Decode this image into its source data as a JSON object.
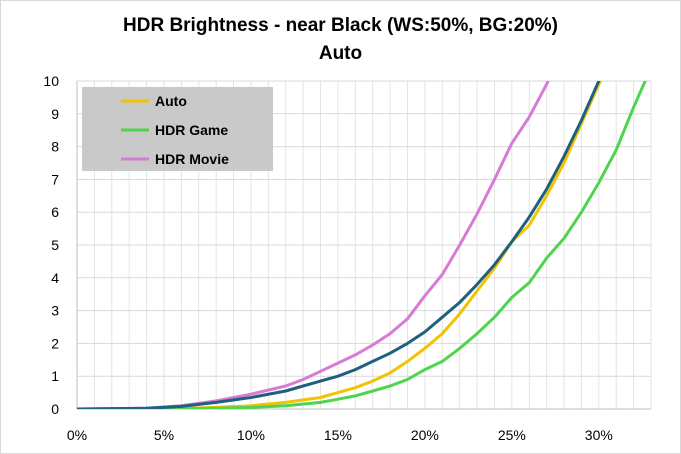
{
  "chart_data": {
    "type": "line",
    "title": "HDR Brightness - near Black (WS:50%, BG:20%)",
    "subtitle": "Auto",
    "xlabel": "",
    "ylabel": "",
    "xlim": [
      0,
      33
    ],
    "ylim": [
      0,
      10
    ],
    "x_ticks": [
      0,
      5,
      10,
      15,
      20,
      25,
      30
    ],
    "x_tick_labels": [
      "0%",
      "5%",
      "10%",
      "15%",
      "20%",
      "25%",
      "30%"
    ],
    "y_ticks": [
      0,
      1,
      2,
      3,
      4,
      5,
      6,
      7,
      8,
      9,
      10
    ],
    "y_tick_labels": [
      "0",
      "1",
      "2",
      "3",
      "4",
      "5",
      "6",
      "7",
      "8",
      "9",
      "10"
    ],
    "grid": true,
    "legend_position": "top-left",
    "series": [
      {
        "name": "Auto",
        "color": "#f2c300",
        "x": [
          0,
          5,
          8,
          10,
          12,
          14,
          15,
          16,
          17,
          18,
          19,
          20,
          21,
          22,
          23,
          24,
          25,
          26,
          27,
          28,
          29,
          30,
          30.5
        ],
        "y": [
          0,
          0,
          0.05,
          0.1,
          0.2,
          0.35,
          0.5,
          0.65,
          0.85,
          1.1,
          1.45,
          1.85,
          2.3,
          2.9,
          3.6,
          4.3,
          5.1,
          5.6,
          6.5,
          7.5,
          8.7,
          9.9,
          10.4
        ]
      },
      {
        "name": "HDR Game",
        "color": "#4fd44f",
        "x": [
          0,
          5,
          8,
          10,
          12,
          14,
          15,
          16,
          17,
          18,
          19,
          20,
          21,
          22,
          23,
          24,
          25,
          26,
          27,
          28,
          29,
          30,
          31,
          32,
          33
        ],
        "y": [
          0,
          0,
          0.02,
          0.05,
          0.1,
          0.2,
          0.3,
          0.4,
          0.55,
          0.7,
          0.9,
          1.2,
          1.45,
          1.85,
          2.3,
          2.8,
          3.4,
          3.85,
          4.6,
          5.2,
          6.0,
          6.9,
          7.9,
          9.2,
          10.4
        ]
      },
      {
        "name": "HDR Movie",
        "color": "#d77bd6",
        "x": [
          0,
          4,
          6,
          8,
          10,
          12,
          13,
          14,
          15,
          16,
          17,
          18,
          19,
          20,
          21,
          22,
          23,
          24,
          25,
          26,
          27,
          27.5
        ],
        "y": [
          0,
          0.02,
          0.1,
          0.25,
          0.45,
          0.7,
          0.9,
          1.15,
          1.4,
          1.65,
          1.95,
          2.3,
          2.75,
          3.45,
          4.1,
          5.0,
          5.95,
          7.0,
          8.1,
          8.9,
          9.9,
          10.5
        ]
      },
      {
        "name": "",
        "color": "#1f5f7f",
        "x": [
          0,
          4,
          6,
          8,
          10,
          12,
          13,
          14,
          15,
          16,
          17,
          18,
          19,
          20,
          21,
          22,
          23,
          24,
          25,
          26,
          27,
          28,
          29,
          30,
          30.5
        ],
        "y": [
          0,
          0.02,
          0.08,
          0.2,
          0.35,
          0.55,
          0.7,
          0.85,
          1.0,
          1.2,
          1.45,
          1.7,
          2.0,
          2.35,
          2.8,
          3.25,
          3.8,
          4.4,
          5.1,
          5.85,
          6.7,
          7.7,
          8.8,
          10.0,
          10.5
        ]
      }
    ]
  }
}
